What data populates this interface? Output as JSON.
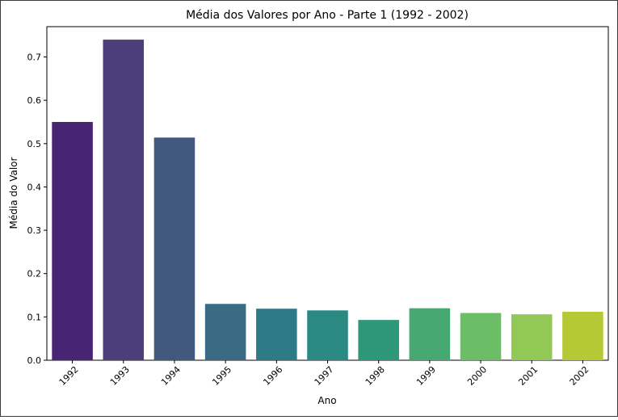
{
  "chart_data": {
    "type": "bar",
    "title": "Média dos Valores por Ano - Parte 1 (1992 - 2002)",
    "xlabel": "Ano",
    "ylabel": "Média do Valor",
    "categories": [
      "1992",
      "1993",
      "1994",
      "1995",
      "1996",
      "1997",
      "1998",
      "1999",
      "2000",
      "2001",
      "2002"
    ],
    "values": [
      0.55,
      0.74,
      0.514,
      0.13,
      0.119,
      0.115,
      0.093,
      0.12,
      0.109,
      0.106,
      0.112
    ],
    "colors": [
      "#482475",
      "#4a3f79",
      "#42597f",
      "#3a6a84",
      "#2f7a87",
      "#2a8983",
      "#2e977a",
      "#47a872",
      "#6cbe66",
      "#92c855",
      "#b5c935"
    ],
    "ylim": [
      0,
      0.77
    ],
    "yticks": [
      0.0,
      0.1,
      0.2,
      0.3,
      0.4,
      0.5,
      0.6,
      0.7
    ],
    "ytick_labels": [
      "0.0",
      "0.1",
      "0.2",
      "0.3",
      "0.4",
      "0.5",
      "0.6",
      "0.7"
    ],
    "grid": false,
    "xtick_rotation": 45
  }
}
